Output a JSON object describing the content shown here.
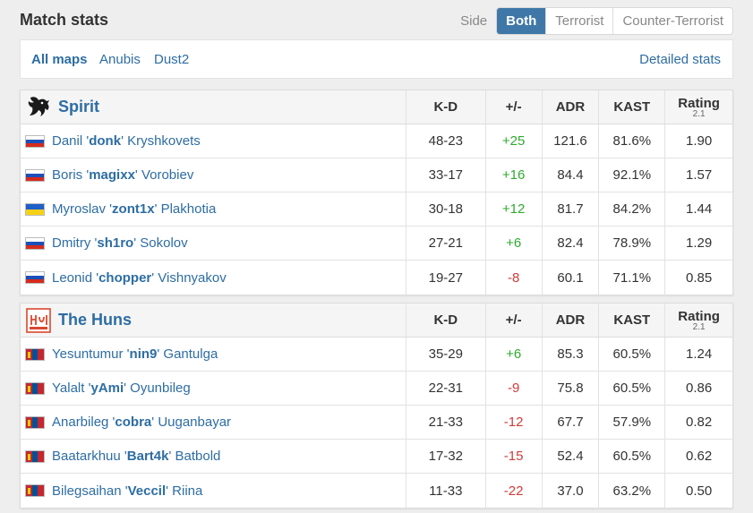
{
  "header": {
    "title": "Match stats"
  },
  "side_filter": {
    "label": "Side",
    "options": [
      "Both",
      "Terrorist",
      "Counter-Terrorist"
    ],
    "active": "Both"
  },
  "maps": {
    "tabs": [
      "All maps",
      "Anubis",
      "Dust2"
    ],
    "active": "All maps",
    "detailed_link": "Detailed stats"
  },
  "columns": {
    "kd": "K-D",
    "pm": "+/-",
    "adr": "ADR",
    "kast": "KAST",
    "rating": "Rating",
    "rating_version": "2.1"
  },
  "teams": [
    {
      "name": "Spirit",
      "players": [
        {
          "first": "Danil",
          "nick": "donk",
          "last": "Kryshkovets",
          "flag": "ru",
          "kd": "48-23",
          "pm": "+25",
          "adr": "121.6",
          "kast": "81.6%",
          "rating": "1.90"
        },
        {
          "first": "Boris",
          "nick": "magixx",
          "last": "Vorobiev",
          "flag": "ru",
          "kd": "33-17",
          "pm": "+16",
          "adr": "84.4",
          "kast": "92.1%",
          "rating": "1.57"
        },
        {
          "first": "Myroslav",
          "nick": "zont1x",
          "last": "Plakhotia",
          "flag": "ua",
          "kd": "30-18",
          "pm": "+12",
          "adr": "81.7",
          "kast": "84.2%",
          "rating": "1.44"
        },
        {
          "first": "Dmitry",
          "nick": "sh1ro",
          "last": "Sokolov",
          "flag": "ru",
          "kd": "27-21",
          "pm": "+6",
          "adr": "82.4",
          "kast": "78.9%",
          "rating": "1.29"
        },
        {
          "first": "Leonid",
          "nick": "chopper",
          "last": "Vishnyakov",
          "flag": "ru",
          "kd": "19-27",
          "pm": "-8",
          "adr": "60.1",
          "kast": "71.1%",
          "rating": "0.85"
        }
      ]
    },
    {
      "name": "The Huns",
      "players": [
        {
          "first": "Yesuntumur",
          "nick": "nin9",
          "last": "Gantulga",
          "flag": "mn",
          "kd": "35-29",
          "pm": "+6",
          "adr": "85.3",
          "kast": "60.5%",
          "rating": "1.24"
        },
        {
          "first": "Yalalt",
          "nick": "yAmi",
          "last": "Oyunbileg",
          "flag": "mn",
          "kd": "22-31",
          "pm": "-9",
          "adr": "75.8",
          "kast": "60.5%",
          "rating": "0.86"
        },
        {
          "first": "Anarbileg",
          "nick": "cobra",
          "last": "Uuganbayar",
          "flag": "mn",
          "kd": "21-33",
          "pm": "-12",
          "adr": "67.7",
          "kast": "57.9%",
          "rating": "0.82"
        },
        {
          "first": "Baatarkhuu",
          "nick": "Bart4k",
          "last": "Batbold",
          "flag": "mn",
          "kd": "17-32",
          "pm": "-15",
          "adr": "52.4",
          "kast": "60.5%",
          "rating": "0.62"
        },
        {
          "first": "Bilegsaihan",
          "nick": "Veccil",
          "last": "Riina",
          "flag": "mn",
          "kd": "11-33",
          "pm": "-22",
          "adr": "37.0",
          "kast": "63.2%",
          "rating": "0.50"
        }
      ]
    }
  ],
  "colors": {
    "accent": "#3f78a8",
    "link": "#2d6da3",
    "positive": "#2eaa2e",
    "negative": "#d33a3a"
  },
  "icons": {
    "spirit_logo": "dragon-logo-icon",
    "huns_logo": "huns-logo-icon"
  }
}
